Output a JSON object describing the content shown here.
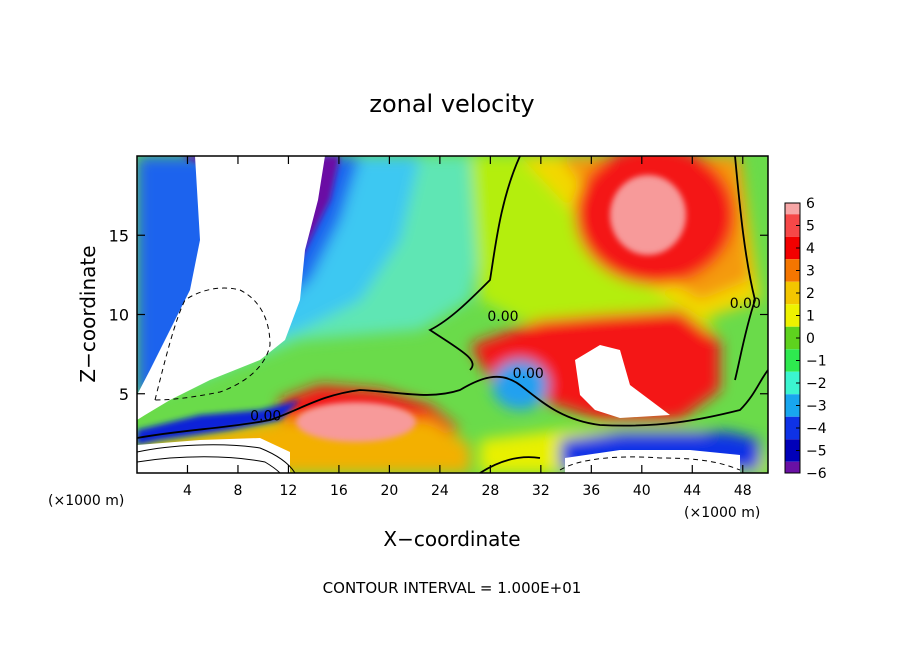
{
  "chart_data": {
    "type": "heatmap",
    "title": "zonal velocity",
    "xlabel": "X−coordinate",
    "ylabel": "Z−coordinate",
    "x_unit_left": "(×1000 m)",
    "x_unit_right": "(×1000 m)",
    "footer": "CONTOUR INTERVAL = 1.000E+01",
    "xlim": [
      0,
      50
    ],
    "ylim": [
      0,
      20
    ],
    "xticks": [
      4,
      8,
      12,
      16,
      20,
      24,
      28,
      32,
      36,
      40,
      44,
      48
    ],
    "yticks": [
      5,
      10,
      15
    ],
    "grid": false,
    "colorbar": {
      "levels": [
        6,
        5,
        4,
        3,
        2,
        1,
        0,
        -1,
        -2,
        -3,
        -4,
        -5,
        -6
      ],
      "labels": [
        "6",
        "5",
        "4",
        "3",
        "2",
        "1",
        "0",
        "−1",
        "−2",
        "−3",
        "−4",
        "−5",
        "−6"
      ],
      "colors": [
        "#f7a6a6",
        "#f64848",
        "#f20000",
        "#f47600",
        "#f3c600",
        "#eef200",
        "#5ed21e",
        "#2ee94f",
        "#3bf5d0",
        "#18a6ef",
        "#0e32e6",
        "#0000b8",
        "#6a10a4"
      ]
    },
    "contour_labels": [
      {
        "text": "0.00",
        "x": 10.2,
        "y": 3.3
      },
      {
        "text": "0.00",
        "x": 29.0,
        "y": 9.6
      },
      {
        "text": "0.00",
        "x": 31.0,
        "y": 6.0
      },
      {
        "text": "0.00",
        "x": 48.2,
        "y": 10.4
      }
    ]
  }
}
